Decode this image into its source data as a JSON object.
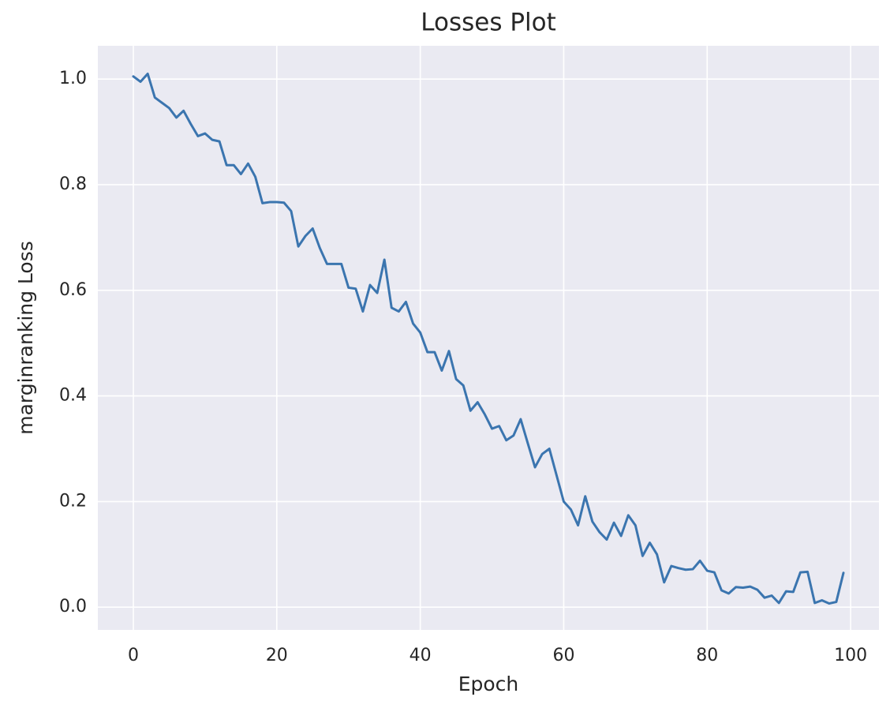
{
  "chart_data": {
    "type": "line",
    "title": "Losses Plot",
    "x_label": "Epoch",
    "y_label": "marginranking Loss",
    "x": [
      0,
      1,
      2,
      3,
      4,
      5,
      6,
      7,
      8,
      9,
      10,
      11,
      12,
      13,
      14,
      15,
      16,
      17,
      18,
      19,
      20,
      21,
      22,
      23,
      24,
      25,
      26,
      27,
      28,
      29,
      30,
      31,
      32,
      33,
      34,
      35,
      36,
      37,
      38,
      39,
      40,
      41,
      42,
      43,
      44,
      45,
      46,
      47,
      48,
      49,
      50,
      51,
      52,
      53,
      54,
      55,
      56,
      57,
      58,
      59,
      60,
      61,
      62,
      63,
      64,
      65,
      66,
      67,
      68,
      69,
      70,
      71,
      72,
      73,
      74,
      75,
      76,
      77,
      78,
      79,
      80,
      81,
      82,
      83,
      84,
      85,
      86,
      87,
      88,
      89,
      90,
      91,
      92,
      93,
      94,
      95,
      96,
      97,
      98,
      99
    ],
    "values": [
      1.005,
      0.995,
      1.01,
      0.965,
      0.955,
      0.945,
      0.927,
      0.94,
      0.915,
      0.892,
      0.897,
      0.885,
      0.882,
      0.837,
      0.837,
      0.82,
      0.84,
      0.815,
      0.765,
      0.767,
      0.767,
      0.766,
      0.75,
      0.683,
      0.703,
      0.717,
      0.68,
      0.65,
      0.65,
      0.65,
      0.605,
      0.603,
      0.56,
      0.61,
      0.595,
      0.658,
      0.567,
      0.56,
      0.578,
      0.537,
      0.52,
      0.483,
      0.483,
      0.448,
      0.485,
      0.432,
      0.42,
      0.372,
      0.388,
      0.365,
      0.338,
      0.343,
      0.316,
      0.325,
      0.356,
      0.31,
      0.265,
      0.29,
      0.3,
      0.25,
      0.2,
      0.185,
      0.155,
      0.21,
      0.162,
      0.142,
      0.128,
      0.16,
      0.135,
      0.174,
      0.155,
      0.097,
      0.122,
      0.1,
      0.047,
      0.078,
      0.074,
      0.071,
      0.072,
      0.088,
      0.069,
      0.066,
      0.032,
      0.026,
      0.038,
      0.037,
      0.039,
      0.033,
      0.018,
      0.022,
      0.008,
      0.03,
      0.029,
      0.066,
      0.067,
      0.008,
      0.013,
      0.007,
      0.01,
      0.065
    ],
    "color": "#3b75af",
    "xlim": [
      -4.95,
      103.95
    ],
    "xticks": [
      0,
      20,
      40,
      60,
      80,
      100
    ],
    "ylim": [
      -0.043,
      1.063
    ],
    "yticks": [
      {
        "value": 0,
        "label": "0.0"
      },
      0.2,
      0.4,
      0.6,
      0.8,
      {
        "value": 1,
        "label": "1.0"
      }
    ],
    "grid": true
  }
}
